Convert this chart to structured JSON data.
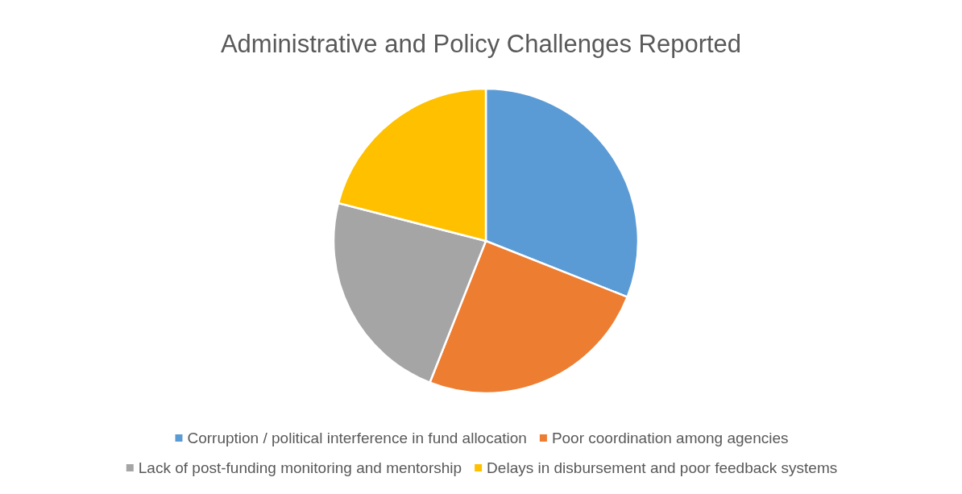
{
  "chart_data": {
    "type": "pie",
    "title": "Administrative and Policy Challenges Reported",
    "categories": [
      "Corruption / political interference in fund allocation",
      "Poor coordination among agencies",
      "Lack of post-funding monitoring and mentorship",
      "Delays in disbursement and poor feedback systems"
    ],
    "values": [
      31,
      25,
      23,
      21
    ],
    "colors": [
      "#5b9bd5",
      "#ed7d31",
      "#a5a5a5",
      "#ffc000"
    ],
    "legend": "bottom"
  }
}
